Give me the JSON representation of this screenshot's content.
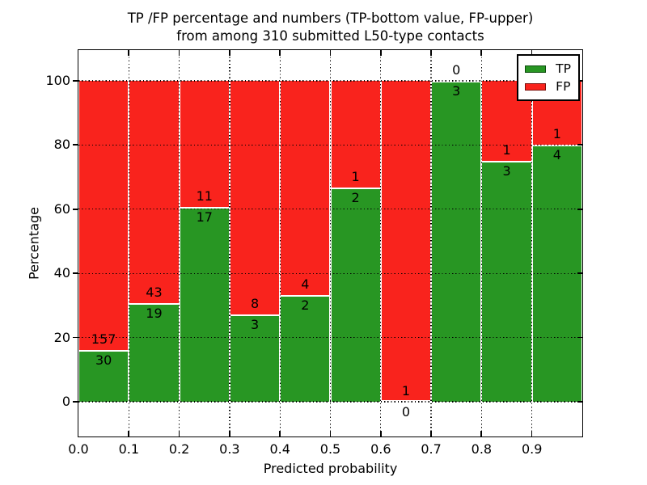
{
  "chart_data": {
    "type": "bar",
    "stacked": true,
    "values_normalized_to_percent": true,
    "title": [
      "TP /FP percentage and numbers (TP-bottom value, FP-upper)",
      "from among 310 submitted L50-type contacts"
    ],
    "xlabel": "Predicted probability",
    "ylabel": "Percentage",
    "x_tick_labels": [
      "0.0",
      "0.1",
      "0.2",
      "0.3",
      "0.4",
      "0.5",
      "0.6",
      "0.7",
      "0.8",
      "0.9"
    ],
    "xlim": [
      0.0,
      1.0
    ],
    "y_ticks": [
      0,
      20,
      40,
      60,
      80,
      100
    ],
    "ylim": [
      -11,
      110
    ],
    "grid": "dotted black, both axes",
    "legend_position": "upper right",
    "categories": [
      "0.0-0.1",
      "0.1-0.2",
      "0.2-0.3",
      "0.3-0.4",
      "0.4-0.5",
      "0.5-0.6",
      "0.6-0.7",
      "0.7-0.8",
      "0.8-0.9",
      "0.9-1.0"
    ],
    "series": [
      {
        "name": "TP",
        "color": "#289623",
        "edge_color": "#0c4d0c",
        "values": [
          30,
          19,
          17,
          3,
          2,
          2,
          0,
          3,
          3,
          4
        ]
      },
      {
        "name": "FP",
        "color": "#f9231d",
        "edge_color": "#7d100c",
        "values": [
          157,
          43,
          11,
          8,
          4,
          1,
          1,
          0,
          1,
          1
        ]
      }
    ],
    "tp_percent_per_bin": [
      16.0,
      30.6,
      60.7,
      27.3,
      33.3,
      66.7,
      0.0,
      100.0,
      75.0,
      80.0
    ],
    "total_contacts": 310
  }
}
